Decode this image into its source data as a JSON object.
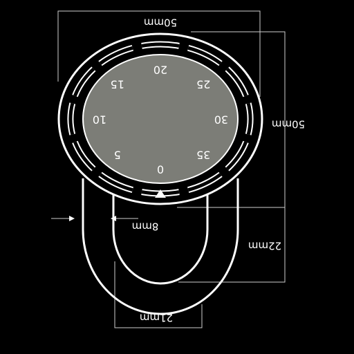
{
  "colors": {
    "background": "#000000",
    "stroke": "#ffffff",
    "dial_face": "#7c7d77",
    "dim_line": "#cfcfcf"
  },
  "dimensions": {
    "top_width": "50mm",
    "right_height": "50mm",
    "opening": "8mm",
    "shackle_height": "22mm",
    "bottom_width": "21mm"
  },
  "dial": {
    "numbers": [
      "0",
      "5",
      "10",
      "15",
      "20",
      "25",
      "30",
      "35"
    ],
    "indicator": "triangle-pointer"
  }
}
